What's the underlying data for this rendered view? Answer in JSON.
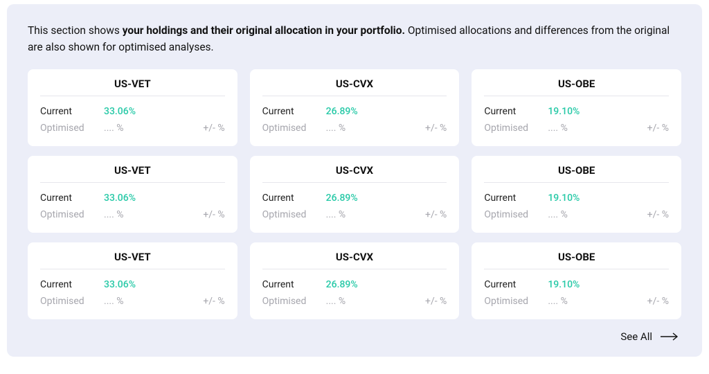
{
  "intro": {
    "prefix": "This section shows ",
    "bold": "your holdings and their original allocation in your portfolio.",
    "suffix": " Optimised allocations and differences from the original are also shown for optimised analyses."
  },
  "labels": {
    "current": "Current",
    "optimised": "Optimised",
    "see_all": "See All"
  },
  "placeholders": {
    "optimised_value": ".... %",
    "delta": "+/- %"
  },
  "colors": {
    "panel_bg": "#eceef8",
    "card_bg": "#ffffff",
    "text": "#111111",
    "muted": "#a6a6ad",
    "accent": "#27c9a7",
    "divider": "#e6e6ec"
  },
  "cards": [
    {
      "ticker": "US-VET",
      "current": "33.06%"
    },
    {
      "ticker": "US-CVX",
      "current": "26.89%"
    },
    {
      "ticker": "US-OBE",
      "current": "19.10%"
    },
    {
      "ticker": "US-VET",
      "current": "33.06%"
    },
    {
      "ticker": "US-CVX",
      "current": "26.89%"
    },
    {
      "ticker": "US-OBE",
      "current": "19.10%"
    },
    {
      "ticker": "US-VET",
      "current": "33.06%"
    },
    {
      "ticker": "US-CVX",
      "current": "26.89%"
    },
    {
      "ticker": "US-OBE",
      "current": "19.10%"
    }
  ]
}
